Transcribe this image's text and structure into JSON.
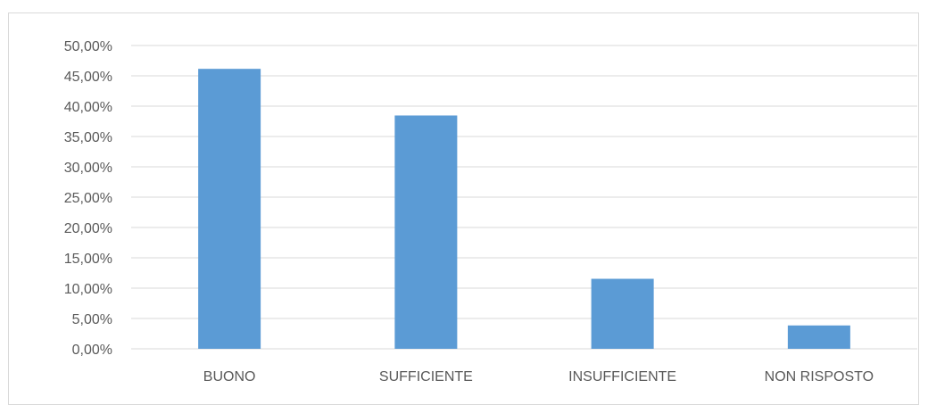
{
  "chart_data": {
    "type": "bar",
    "title": "",
    "xlabel": "",
    "ylabel": "",
    "categories": [
      "BUONO",
      "SUFFICIENTE",
      "INSUFFICIENTE",
      "NON RISPOSTO"
    ],
    "values": [
      46.15,
      38.46,
      11.54,
      3.85
    ],
    "ylim": [
      0,
      50
    ],
    "yticks": [
      "0,00%",
      "5,00%",
      "10,00%",
      "15,00%",
      "20,00%",
      "25,00%",
      "30,00%",
      "35,00%",
      "40,00%",
      "45,00%",
      "50,00%"
    ],
    "grid": true,
    "legend": "none",
    "bar_color": "#5b9bd5",
    "grid_color": "#d9d9d9",
    "label_color": "#595959"
  }
}
